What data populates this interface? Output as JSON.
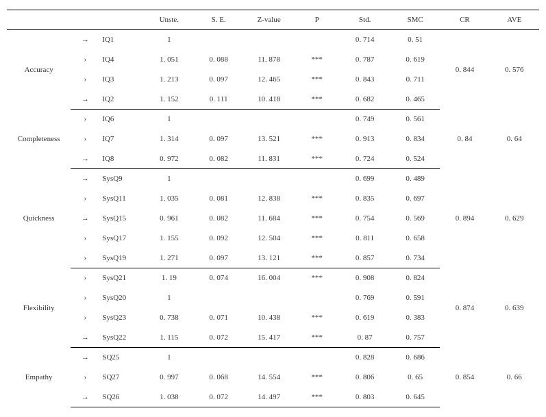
{
  "columns": [
    "",
    "",
    "",
    "Unste.",
    "S. E.",
    "Z-value",
    "P",
    "Std.",
    "SMC",
    "CR",
    "AVE"
  ],
  "groups": [
    {
      "name": "Accuracy",
      "cr": "0. 844",
      "ave": "0. 576",
      "heavy": true,
      "rows": [
        {
          "arrow": "→",
          "item": "IQ1",
          "unste": "1",
          "se": "",
          "z": "",
          "p": "",
          "std": "0. 714",
          "smc": "0. 51"
        },
        {
          "arrow": "›",
          "item": "IQ4",
          "unste": "1. 051",
          "se": "0. 088",
          "z": "11. 878",
          "p": "***",
          "std": "0. 787",
          "smc": "0. 619"
        },
        {
          "arrow": "›",
          "item": "IQ3",
          "unste": "1. 213",
          "se": "0. 097",
          "z": "12. 465",
          "p": "***",
          "std": "0. 843",
          "smc": "0. 711"
        },
        {
          "arrow": "→",
          "item": "IQ2",
          "unste": "1. 152",
          "se": "0. 111",
          "z": "10. 418",
          "p": "***",
          "std": "0. 682",
          "smc": "0. 465"
        }
      ]
    },
    {
      "name": "Completeness",
      "cr": "0. 84",
      "ave": "0. 64",
      "heavy": true,
      "rows": [
        {
          "arrow": "›",
          "item": "IQ6",
          "unste": "1",
          "se": "",
          "z": "",
          "p": "",
          "std": "0. 749",
          "smc": "0. 561"
        },
        {
          "arrow": "›",
          "item": "IQ7",
          "unste": "1. 314",
          "se": "0. 097",
          "z": "13. 521",
          "p": "***",
          "std": "0. 913",
          "smc": "0. 834"
        },
        {
          "arrow": "→",
          "item": "IQ8",
          "unste": "0. 972",
          "se": "0. 082",
          "z": "11. 831",
          "p": "***",
          "std": "0. 724",
          "smc": "0. 524"
        }
      ]
    },
    {
      "name": "Quickness",
      "cr": "0. 894",
      "ave": "0. 629",
      "heavy": false,
      "rows": [
        {
          "arrow": "→",
          "item": "SysQ9",
          "unste": "1",
          "se": "",
          "z": "",
          "p": "",
          "std": "0. 699",
          "smc": "0. 489"
        },
        {
          "arrow": "›",
          "item": "SysQ11",
          "unste": "1. 035",
          "se": "0. 081",
          "z": "12. 838",
          "p": "***",
          "std": "0. 835",
          "smc": "0. 697"
        },
        {
          "arrow": "→",
          "item": "SysQ15",
          "unste": "0. 961",
          "se": "0. 082",
          "z": "11. 684",
          "p": "***",
          "std": "0. 754",
          "smc": "0. 569"
        },
        {
          "arrow": "›",
          "item": "SysQ17",
          "unste": "1. 155",
          "se": "0. 092",
          "z": "12. 504",
          "p": "***",
          "std": "0. 811",
          "smc": "0. 658"
        },
        {
          "arrow": "›",
          "item": "SysQ19",
          "unste": "1. 271",
          "se": "0. 097",
          "z": "13. 121",
          "p": "***",
          "std": "0. 857",
          "smc": "0. 734"
        }
      ]
    },
    {
      "name": "Flexibility",
      "cr": "0. 874",
      "ave": "0. 639",
      "heavy": true,
      "rows": [
        {
          "arrow": "›",
          "item": "SysQ21",
          "unste": "1. 19",
          "se": "0. 074",
          "z": "16. 004",
          "p": "***",
          "std": "0. 908",
          "smc": "0. 824"
        },
        {
          "arrow": "›",
          "item": "SysQ20",
          "unste": "1",
          "se": "",
          "z": "",
          "p": "",
          "std": "0. 769",
          "smc": "0. 591"
        },
        {
          "arrow": "›",
          "item": "SysQ23",
          "unste": "0. 738",
          "se": "0. 071",
          "z": "10. 438",
          "p": "***",
          "std": "0. 619",
          "smc": "0. 383"
        },
        {
          "arrow": "→",
          "item": "SysQ22",
          "unste": "1. 115",
          "se": "0. 072",
          "z": "15. 417",
          "p": "***",
          "std": "0. 87",
          "smc": "0. 757"
        }
      ]
    },
    {
      "name": "Empathy",
      "cr": "0. 854",
      "ave": "0. 66",
      "heavy": true,
      "rows": [
        {
          "arrow": "→",
          "item": "SQ25",
          "unste": "1",
          "se": "",
          "z": "",
          "p": "",
          "std": "0. 828",
          "smc": "0. 686"
        },
        {
          "arrow": "›",
          "item": "SQ27",
          "unste": "0. 997",
          "se": "0. 068",
          "z": "14. 554",
          "p": "***",
          "std": "0. 806",
          "smc": "0. 65"
        },
        {
          "arrow": "→",
          "item": "SQ26",
          "unste": "1. 038",
          "se": "0. 072",
          "z": "14. 497",
          "p": "***",
          "std": "0. 803",
          "smc": "0. 645"
        }
      ]
    }
  ]
}
